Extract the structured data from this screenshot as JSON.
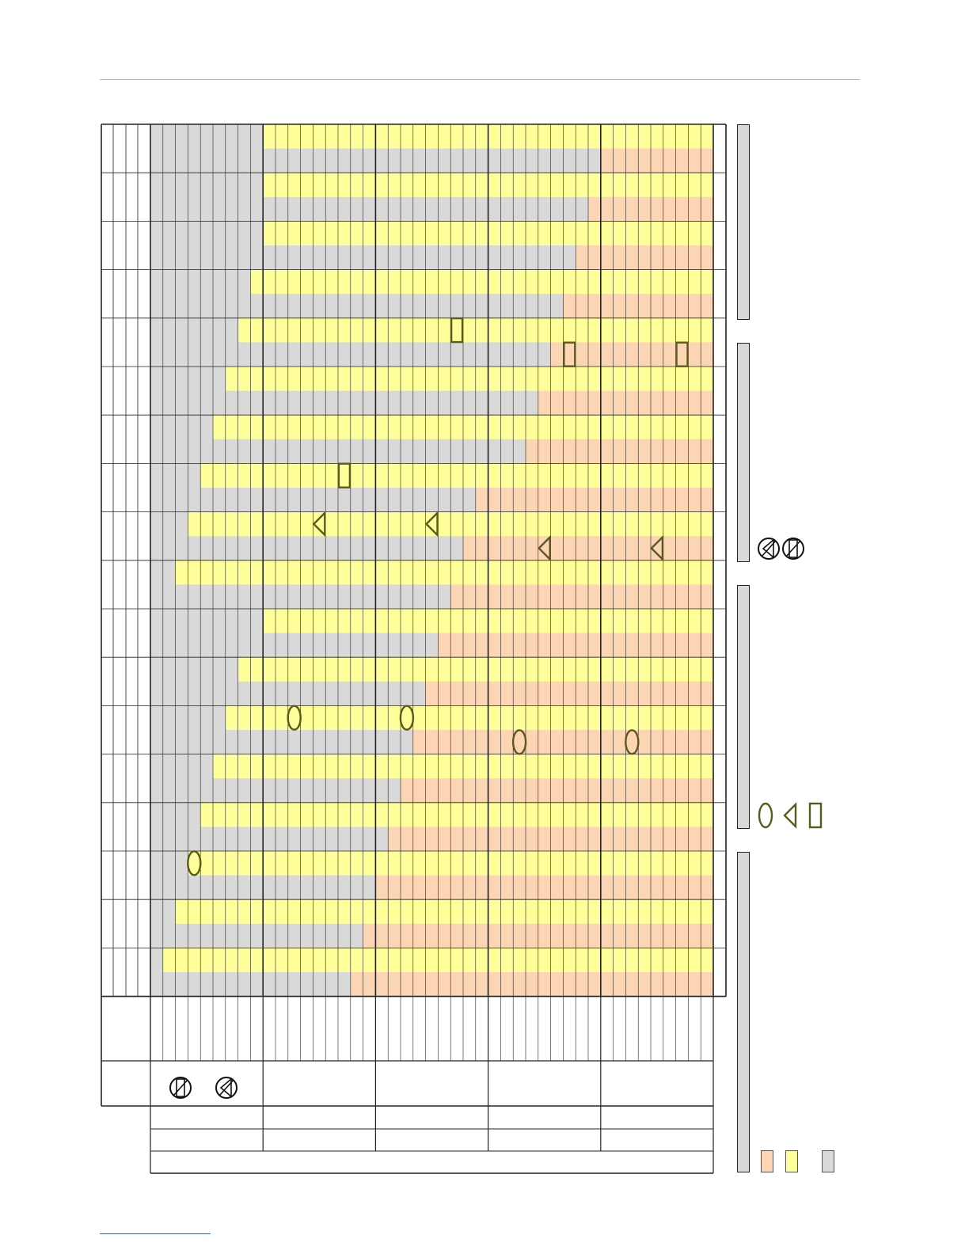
{
  "colors": {
    "gray": "#d9d9d9",
    "yellow": "#ffff99",
    "peach": "#fcd5b4",
    "marker": "#5a5a1e",
    "line": "#222222"
  },
  "grid": {
    "columns_per_group": 9,
    "groups": 5,
    "rows": 18,
    "yellow_start_col": [
      9,
      9,
      9,
      8,
      7,
      6,
      5,
      4,
      3,
      2,
      1,
      0,
      0,
      0,
      0,
      0,
      0,
      0
    ],
    "yellow_start_top_offset": [
      0,
      0,
      0,
      0,
      0,
      0,
      0,
      0,
      0,
      0,
      8,
      7,
      6,
      5,
      4,
      3,
      2,
      1
    ],
    "peach_start_col": [
      36,
      35,
      34,
      33,
      32,
      31,
      30,
      26,
      25,
      24,
      23,
      22,
      21,
      20,
      19,
      18,
      17,
      16
    ]
  },
  "markers": [
    {
      "shape": "rect-icon",
      "row": 4,
      "half": "top",
      "col": 24
    },
    {
      "shape": "rect-icon",
      "row": 4,
      "half": "bottom",
      "col": 33
    },
    {
      "shape": "rect-icon",
      "row": 4,
      "half": "bottom",
      "col": 42
    },
    {
      "shape": "rect-icon",
      "row": 7,
      "half": "top",
      "col": 15
    },
    {
      "shape": "triangle-icon",
      "row": 8,
      "half": "top",
      "col": 13
    },
    {
      "shape": "triangle-icon",
      "row": 8,
      "half": "top",
      "col": 22
    },
    {
      "shape": "triangle-icon",
      "row": 8,
      "half": "bottom",
      "col": 31
    },
    {
      "shape": "triangle-icon",
      "row": 8,
      "half": "bottom",
      "col": 40
    },
    {
      "shape": "oval-icon",
      "row": 12,
      "half": "top",
      "col": 11
    },
    {
      "shape": "oval-icon",
      "row": 12,
      "half": "top",
      "col": 20
    },
    {
      "shape": "oval-icon",
      "row": 12,
      "half": "bottom",
      "col": 29
    },
    {
      "shape": "oval-icon",
      "row": 12,
      "half": "bottom",
      "col": 38
    },
    {
      "shape": "oval-icon",
      "row": 15,
      "half": "top",
      "col": 3
    }
  ],
  "legend": {
    "shape_keys": [
      "oval-icon",
      "triangle-icon",
      "rect-icon"
    ],
    "crossed_keys": [
      "crossed-triangle-icon",
      "crossed-rect-icon"
    ],
    "swatches": [
      "peach",
      "yellow",
      "gray"
    ]
  }
}
